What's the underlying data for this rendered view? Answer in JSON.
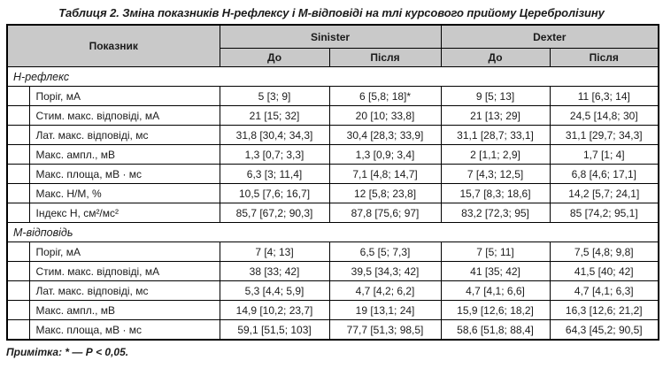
{
  "title": "Таблиця 2. Зміна показників Н-рефлексу і М-відповіді на тлі курсового прийому Церебролізину",
  "colors": {
    "header_bg": "#c9c9c9",
    "border": "#000000",
    "page_bg": "#ffffff"
  },
  "table": {
    "header": {
      "indicator": "Показник",
      "groups": [
        {
          "label": "Sinister"
        },
        {
          "label": "Dexter"
        }
      ],
      "subcolumns": [
        "До",
        "Після",
        "До",
        "Після"
      ]
    },
    "sections": [
      {
        "name": "Н-рефлекс",
        "rows": [
          {
            "label": "Поріг, мА",
            "values": [
              "5 [3; 9]",
              "6 [5,8; 18]*",
              "9 [5; 13]",
              "11 [6,3; 14]"
            ]
          },
          {
            "label": "Стим. макс. відповіді, мА",
            "values": [
              "21 [15; 32]",
              "20 [10; 33,8]",
              "21 [13; 29]",
              "24,5 [14,8; 30]"
            ]
          },
          {
            "label": "Лат. макс. відповіді, мс",
            "values": [
              "31,8 [30,4; 34,3]",
              "30,4 [28,3; 33,9]",
              "31,1 [28,7; 33,1]",
              "31,1 [29,7; 34,3]"
            ]
          },
          {
            "label": "Макс. ампл., мВ",
            "values": [
              "1,3 [0,7; 3,3]",
              "1,3 [0,9; 3,4]",
              "2 [1,1; 2,9]",
              "1,7 [1; 4]"
            ]
          },
          {
            "label": "Макс. площа, мВ · мс",
            "values": [
              "6,3 [3; 11,4]",
              "7,1 [4,8; 14,7]",
              "7 [4,3; 12,5]",
              "6,8 [4,6; 17,1]"
            ]
          },
          {
            "label": "Макс. Н/М, %",
            "values": [
              "10,5 [7,6; 16,7]",
              "12 [5,8; 23,8]",
              "15,7 [8,3; 18,6]",
              "14,2 [5,7; 24,1]"
            ]
          },
          {
            "label": "Індекс Н, см²/мс²",
            "values": [
              "85,7 [67,2; 90,3]",
              "87,8 [75,6; 97]",
              "83,2 [72,3; 95]",
              "85 [74,2; 95,1]"
            ]
          }
        ]
      },
      {
        "name": "М-відповідь",
        "rows": [
          {
            "label": "Поріг, мА",
            "values": [
              "7 [4; 13]",
              "6,5 [5; 7,3]",
              "7 [5; 11]",
              "7,5 [4,8; 9,8]"
            ]
          },
          {
            "label": "Стим. макс. відповіді, мА",
            "values": [
              "38 [33; 42]",
              "39,5 [34,3; 42]",
              "41 [35; 42]",
              "41,5 [40; 42]"
            ]
          },
          {
            "label": "Лат. макс. відповіді, мс",
            "values": [
              "5,3 [4,4; 5,9]",
              "4,7 [4,2; 6,2]",
              "4,7 [4,1; 6,6]",
              "4,7 [4,1; 6,3]"
            ]
          },
          {
            "label": "Макс. ампл., мВ",
            "values": [
              "14,9 [10,2; 23,7]",
              "19 [13,1; 24]",
              "15,9 [12,6; 18,2]",
              "16,3 [12,6; 21,2]"
            ]
          },
          {
            "label": "Макс. площа, мВ · мс",
            "values": [
              "59,1 [51,5; 103]",
              "77,7 [51,3; 98,5]",
              "58,6 [51,8; 88,4]",
              "64,3 [45,2; 90,5]"
            ]
          }
        ]
      }
    ]
  },
  "footnote": "Примітка: * — Р < 0,05."
}
